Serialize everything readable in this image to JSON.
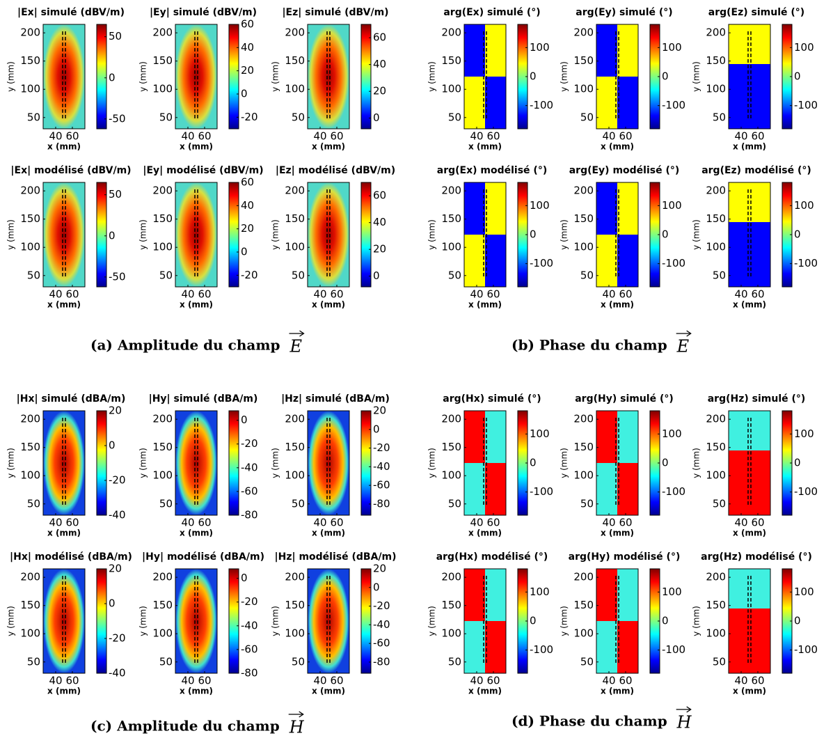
{
  "x_label": "x (mm)",
  "y_label": "y (mm)",
  "xlim": [
    25,
    75
  ],
  "ylim": [
    30,
    215
  ],
  "xticks": [
    40,
    60
  ],
  "yticks": [
    50,
    100,
    150,
    200
  ],
  "subfigures": [
    {
      "caption": "(a) Amplitude du champ",
      "vector": "E",
      "panels": [
        {
          "title": "|Ex| simulé (dBV/m)",
          "clim": [
            -62,
            65
          ],
          "cticks": [
            -50,
            0,
            50
          ]
        },
        {
          "title": "|Ey| simulé (dBV/m)",
          "clim": [
            -30,
            60
          ],
          "cticks": [
            -20,
            0,
            20,
            40,
            60
          ]
        },
        {
          "title": "|Ez| simulé (dBV/m)",
          "clim": [
            -8,
            70
          ],
          "cticks": [
            0,
            20,
            40,
            60
          ]
        },
        {
          "title": "|Ex| modélisé (dBV/m)",
          "clim": [
            -62,
            65
          ],
          "cticks": [
            -50,
            0,
            50
          ]
        },
        {
          "title": "|Ey| modélisé (dBV/m)",
          "clim": [
            -30,
            60
          ],
          "cticks": [
            -20,
            0,
            20,
            40,
            60
          ]
        },
        {
          "title": "|Ez| modélisé (dBV/m)",
          "clim": [
            -8,
            70
          ],
          "cticks": [
            0,
            20,
            40,
            60
          ]
        }
      ]
    },
    {
      "caption": "(b) Phase du champ",
      "vector": "E",
      "panels": [
        {
          "title": "arg(Ex) simulé (°)",
          "clim": [
            -180,
            180
          ],
          "cticks": [
            -100,
            0,
            100
          ]
        },
        {
          "title": "arg(Ey) simulé (°)",
          "clim": [
            -180,
            180
          ],
          "cticks": [
            -100,
            0,
            100
          ]
        },
        {
          "title": "arg(Ez) simulé (°)",
          "clim": [
            -180,
            180
          ],
          "cticks": [
            -100,
            0,
            100
          ]
        },
        {
          "title": "arg(Ex) modélisé (°)",
          "clim": [
            -180,
            180
          ],
          "cticks": [
            -100,
            0,
            100
          ]
        },
        {
          "title": "arg(Ey) modélisé (°)",
          "clim": [
            -180,
            180
          ],
          "cticks": [
            -100,
            0,
            100
          ]
        },
        {
          "title": "arg(Ez) modélisé (°)",
          "clim": [
            -180,
            180
          ],
          "cticks": [
            -100,
            0,
            100
          ]
        }
      ]
    },
    {
      "caption": "(c) Amplitude du champ",
      "vector": "H",
      "panels": [
        {
          "title": "|Hx| simulé (dBA/m)",
          "clim": [
            -40,
            20
          ],
          "cticks": [
            -40,
            -20,
            0,
            20
          ]
        },
        {
          "title": "|Hy| simulé (dBA/m)",
          "clim": [
            -80,
            8
          ],
          "cticks": [
            -80,
            -60,
            -40,
            -20,
            0
          ]
        },
        {
          "title": "|Hz| simulé (dBA/m)",
          "clim": [
            -92,
            20
          ],
          "cticks": [
            -80,
            -60,
            -40,
            -20,
            0,
            20
          ]
        },
        {
          "title": "|Hx| modélisé (dBA/m)",
          "clim": [
            -40,
            20
          ],
          "cticks": [
            -40,
            -20,
            0,
            20
          ]
        },
        {
          "title": "|Hy| modélisé (dBA/m)",
          "clim": [
            -80,
            8
          ],
          "cticks": [
            -80,
            -60,
            -40,
            -20,
            0
          ]
        },
        {
          "title": "|Hz| modélisé (dBA/m)",
          "clim": [
            -92,
            20
          ],
          "cticks": [
            -80,
            -60,
            -40,
            -20,
            0,
            20
          ]
        }
      ]
    },
    {
      "caption": "(d) Phase du champ",
      "vector": "H",
      "panels": [
        {
          "title": "arg(Hx) simulé (°)",
          "clim": [
            -180,
            180
          ],
          "cticks": [
            -100,
            0,
            100
          ]
        },
        {
          "title": "arg(Hy) simulé (°)",
          "clim": [
            -180,
            180
          ],
          "cticks": [
            -100,
            0,
            100
          ]
        },
        {
          "title": "arg(Hz) simulé (°)",
          "clim": [
            -180,
            180
          ],
          "cticks": [
            -100,
            0,
            100
          ]
        },
        {
          "title": "arg(Hx) modélisé (°)",
          "clim": [
            -180,
            180
          ],
          "cticks": [
            -100,
            0,
            100
          ]
        },
        {
          "title": "arg(Hy) modélisé (°)",
          "clim": [
            -180,
            180
          ],
          "cticks": [
            -100,
            0,
            100
          ]
        },
        {
          "title": "arg(Hz) modélisé (°)",
          "clim": [
            -180,
            180
          ],
          "cticks": [
            -100,
            0,
            100
          ]
        }
      ]
    }
  ]
}
